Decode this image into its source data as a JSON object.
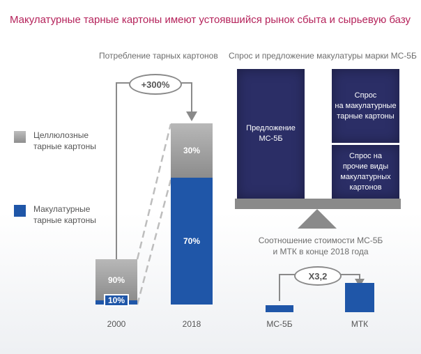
{
  "title": "Макулатурные тарные картоны имеют устоявшийся рынок сбыта и сырьевую базу",
  "left_chart": {
    "subtitle": "Потребление тарных картонов",
    "growth_label": "+300%",
    "legend": [
      {
        "label_line1": "Целлюлозные",
        "label_line2": "тарные картоны",
        "color": "#a3a3a3"
      },
      {
        "label_line1": "Макулатурные",
        "label_line2": "тарные картоны",
        "color": "#1f56a8"
      }
    ]
  },
  "chart_data": {
    "type": "bar",
    "stacked": true,
    "categories": [
      "2000",
      "2018"
    ],
    "relative_total": [
      1,
      4
    ],
    "series": [
      {
        "name": "Целлюлозные тарные картоны",
        "values": [
          90,
          30
        ],
        "labels": [
          "90%",
          "30%"
        ],
        "color": "#a3a3a3"
      },
      {
        "name": "Макулатурные тарные картоны",
        "values": [
          10,
          70
        ],
        "labels": [
          "10%",
          "70%"
        ],
        "color": "#1f56a8"
      }
    ]
  },
  "right_panel": {
    "subtitle": "Спрос и предложение макулатуры марки МС-5Б",
    "supply_line1": "Предложение",
    "supply_line2": "МС-5Б",
    "demand1_line1": "Спрос",
    "demand1_line2": "на макулатурные",
    "demand1_line3": "тарные картоны",
    "demand2_line1": "Спрос на",
    "demand2_line2": "прочие виды",
    "demand2_line3": "макулатурных",
    "demand2_line4": "картонов",
    "ratio_title_line1": "Соотношение стоимости МС-5Б",
    "ratio_title_line2": "и МТК в конце 2018 года",
    "multiplier": "X3,2",
    "ratio_ms5b": 1,
    "ratio_mtk": 3.2,
    "label_ms5b": "МС-5Б",
    "label_mtk": "МТК",
    "colors": {
      "navy": "#2b2e66",
      "blue": "#1f56a8",
      "gray": "#8a8a8a"
    }
  }
}
